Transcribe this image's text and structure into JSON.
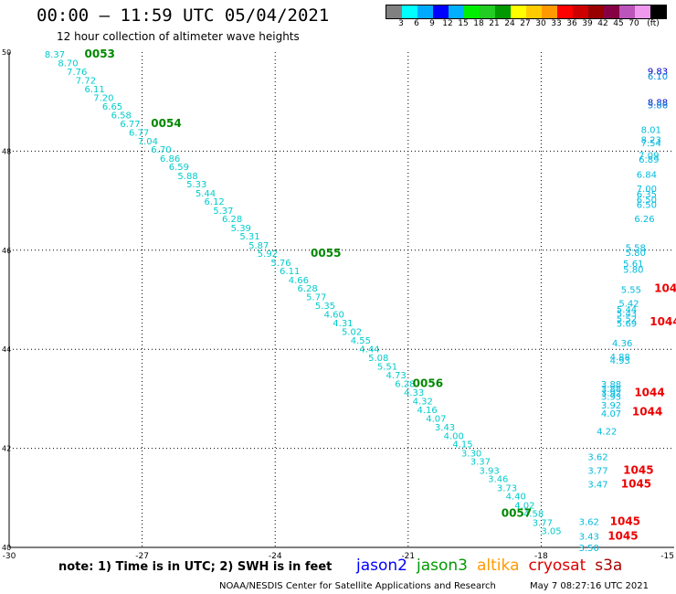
{
  "title": "00:00 – 11:59 UTC 05/04/2021",
  "subtitle": "12 hour collection of altimeter wave heights",
  "legend": {
    "colors": [
      "#808080",
      "#00ffff",
      "#00aaff",
      "#0000ff",
      "#00b0ff",
      "#00ee00",
      "#22cc22",
      "#009900",
      "#ffff00",
      "#ffcc00",
      "#ff9900",
      "#ff0000",
      "#cc0000",
      "#990000",
      "#880044",
      "#bb55bb",
      "#ee99ee",
      "#000000"
    ],
    "labels": [
      "3",
      "6",
      "9",
      "12",
      "15",
      "18",
      "21",
      "24",
      "27",
      "30",
      "33",
      "36",
      "39",
      "42",
      "45",
      "70",
      "(ft)"
    ]
  },
  "note": "note:  1) Time is in UTC;  2) SWH is in feet",
  "satellites": [
    {
      "name": "jason2",
      "color": "#0000ff"
    },
    {
      "name": "jason3",
      "color": "#009900"
    },
    {
      "name": "altika",
      "color": "#ff9900"
    },
    {
      "name": "cryosat",
      "color": "#dd0000"
    },
    {
      "name": "s3a",
      "color": "#aa0000"
    }
  ],
  "credit": "NOAA/NESDIS Center for Satellite Applications and Research",
  "timestamp": "May  7 08:27:16 UTC 2021",
  "chart_data": {
    "type": "scatter",
    "xlim": [
      -30,
      -15
    ],
    "ylim": [
      40,
      50
    ],
    "x_ticks": [
      -30,
      -27,
      -24,
      -21,
      -18,
      -15
    ],
    "y_ticks": [
      40,
      42,
      44,
      46,
      48,
      50
    ],
    "grid": true,
    "series": [
      {
        "name": "jason3",
        "color": "#00cccc",
        "points": [
          {
            "lon": -29.2,
            "lat": 49.96,
            "label": "8.37"
          },
          {
            "lon": -28.9,
            "lat": 49.79,
            "label": "8.70"
          },
          {
            "lon": -28.7,
            "lat": 49.61,
            "label": "7.76"
          },
          {
            "lon": -28.5,
            "lat": 49.44,
            "label": "7.72"
          },
          {
            "lon": -28.3,
            "lat": 49.26,
            "label": "6.11"
          },
          {
            "lon": -28.1,
            "lat": 49.09,
            "label": "7.20"
          },
          {
            "lon": -27.9,
            "lat": 48.91,
            "label": "6.65"
          },
          {
            "lon": -27.7,
            "lat": 48.74,
            "label": "6.58"
          },
          {
            "lon": -27.5,
            "lat": 48.56,
            "label": "6.77"
          },
          {
            "lon": -27.3,
            "lat": 48.39,
            "label": "6.77"
          },
          {
            "lon": -27.1,
            "lat": 48.21,
            "label": "7.04"
          },
          {
            "lon": -26.8,
            "lat": 48.04,
            "label": "6.70"
          },
          {
            "lon": -26.6,
            "lat": 47.86,
            "label": "6.86"
          },
          {
            "lon": -26.4,
            "lat": 47.69,
            "label": "6.59"
          },
          {
            "lon": -26.2,
            "lat": 47.51,
            "label": "5.88"
          },
          {
            "lon": -26.0,
            "lat": 47.34,
            "label": "5.33"
          },
          {
            "lon": -25.8,
            "lat": 47.16,
            "label": "5.44"
          },
          {
            "lon": -25.6,
            "lat": 46.99,
            "label": "6.12"
          },
          {
            "lon": -25.4,
            "lat": 46.81,
            "label": "5.37"
          },
          {
            "lon": -25.2,
            "lat": 46.64,
            "label": "6.28"
          },
          {
            "lon": -25.0,
            "lat": 46.46,
            "label": "5.39"
          },
          {
            "lon": -24.8,
            "lat": 46.29,
            "label": "5.31"
          },
          {
            "lon": -24.6,
            "lat": 46.11,
            "label": "5.87"
          },
          {
            "lon": -24.4,
            "lat": 45.94,
            "label": "5.92"
          },
          {
            "lon": -24.1,
            "lat": 45.76,
            "label": "5.76"
          },
          {
            "lon": -23.9,
            "lat": 45.59,
            "label": "6.11"
          },
          {
            "lon": -23.7,
            "lat": 45.41,
            "label": "4.66"
          },
          {
            "lon": -23.5,
            "lat": 45.24,
            "label": "6.28"
          },
          {
            "lon": -23.3,
            "lat": 45.06,
            "label": "5.77"
          },
          {
            "lon": -23.1,
            "lat": 44.89,
            "label": "5.35"
          },
          {
            "lon": -22.9,
            "lat": 44.71,
            "label": "4.60"
          },
          {
            "lon": -22.7,
            "lat": 44.54,
            "label": "4.31"
          },
          {
            "lon": -22.5,
            "lat": 44.36,
            "label": "5.02"
          },
          {
            "lon": -22.3,
            "lat": 44.19,
            "label": "4.55"
          },
          {
            "lon": -22.1,
            "lat": 44.01,
            "label": "4.44"
          },
          {
            "lon": -21.9,
            "lat": 43.84,
            "label": "5.08"
          },
          {
            "lon": -21.7,
            "lat": 43.66,
            "label": "5.51"
          },
          {
            "lon": -21.5,
            "lat": 43.49,
            "label": "4.73"
          },
          {
            "lon": -21.3,
            "lat": 43.31,
            "label": "6.28"
          },
          {
            "lon": -21.1,
            "lat": 43.14,
            "label": "4.33"
          },
          {
            "lon": -20.9,
            "lat": 42.96,
            "label": "4.32"
          },
          {
            "lon": -20.8,
            "lat": 42.79,
            "label": "4.16"
          },
          {
            "lon": -20.6,
            "lat": 42.61,
            "label": "4.07"
          },
          {
            "lon": -20.4,
            "lat": 42.44,
            "label": "3.43"
          },
          {
            "lon": -20.2,
            "lat": 42.26,
            "label": "4.00"
          },
          {
            "lon": -20.0,
            "lat": 42.09,
            "label": "4.15"
          },
          {
            "lon": -19.8,
            "lat": 41.91,
            "label": "3.30"
          },
          {
            "lon": -19.6,
            "lat": 41.74,
            "label": "3.37"
          },
          {
            "lon": -19.4,
            "lat": 41.56,
            "label": "3.93"
          },
          {
            "lon": -19.2,
            "lat": 41.39,
            "label": "3.46"
          },
          {
            "lon": -19.0,
            "lat": 41.21,
            "label": "3.73"
          },
          {
            "lon": -18.8,
            "lat": 41.04,
            "label": "4.40"
          },
          {
            "lon": -18.6,
            "lat": 40.86,
            "label": "4.02"
          },
          {
            "lon": -18.4,
            "lat": 40.69,
            "label": "4.58"
          },
          {
            "lon": -18.2,
            "lat": 40.51,
            "label": "3.77"
          },
          {
            "lon": -18.0,
            "lat": 40.34,
            "label": "3.05"
          }
        ]
      },
      {
        "name": "jason3 time",
        "color": "#008800",
        "points": [
          {
            "lon": -28.3,
            "lat": 49.96,
            "label": "0053"
          },
          {
            "lon": -26.8,
            "lat": 48.56,
            "label": "0054"
          },
          {
            "lon": -23.2,
            "lat": 45.94,
            "label": "0055"
          },
          {
            "lon": -20.9,
            "lat": 43.31,
            "label": "0056"
          },
          {
            "lon": -18.9,
            "lat": 40.69,
            "label": "0057"
          }
        ]
      },
      {
        "name": "east track",
        "color": "#00bbdd",
        "points": [
          {
            "lon": -15.6,
            "lat": 49.62,
            "label": "9.83",
            "color": "#0000cc"
          },
          {
            "lon": -15.6,
            "lat": 49.52,
            "label": "6.10",
            "color": "#0088dd"
          },
          {
            "lon": -15.6,
            "lat": 48.99,
            "label": "8.88",
            "color": "#0000cc"
          },
          {
            "lon": -15.6,
            "lat": 48.94,
            "label": "5.86",
            "color": "#0088dd"
          },
          {
            "lon": -15.75,
            "lat": 48.44,
            "label": "8.01"
          },
          {
            "lon": -15.75,
            "lat": 48.24,
            "label": "8.23"
          },
          {
            "lon": -15.75,
            "lat": 48.17,
            "label": "7.54"
          },
          {
            "lon": -15.8,
            "lat": 47.92,
            "label": "7.09"
          },
          {
            "lon": -15.8,
            "lat": 47.84,
            "label": "6.89"
          },
          {
            "lon": -15.85,
            "lat": 47.54,
            "label": "6.84"
          },
          {
            "lon": -15.85,
            "lat": 47.25,
            "label": "7.00"
          },
          {
            "lon": -15.85,
            "lat": 47.14,
            "label": "6.35"
          },
          {
            "lon": -15.85,
            "lat": 47.03,
            "label": "6.50"
          },
          {
            "lon": -15.85,
            "lat": 46.93,
            "label": "6.50"
          },
          {
            "lon": -15.9,
            "lat": 46.64,
            "label": "6.26"
          },
          {
            "lon": -16.1,
            "lat": 46.06,
            "label": "5.58"
          },
          {
            "lon": -16.1,
            "lat": 45.96,
            "label": "5.80"
          },
          {
            "lon": -16.15,
            "lat": 45.74,
            "label": "5.61"
          },
          {
            "lon": -16.15,
            "lat": 45.62,
            "label": "5.80"
          },
          {
            "lon": -16.2,
            "lat": 45.21,
            "label": "5.55"
          },
          {
            "lon": -16.25,
            "lat": 44.94,
            "label": "5.42"
          },
          {
            "lon": -16.3,
            "lat": 44.82,
            "label": "5.44"
          },
          {
            "lon": -16.3,
            "lat": 44.73,
            "label": "5.43"
          },
          {
            "lon": -16.3,
            "lat": 44.62,
            "label": "5.52"
          },
          {
            "lon": -16.3,
            "lat": 44.53,
            "label": "5.69"
          },
          {
            "lon": -16.4,
            "lat": 44.13,
            "label": "4.36"
          },
          {
            "lon": -16.45,
            "lat": 43.86,
            "label": "4.88"
          },
          {
            "lon": -16.45,
            "lat": 43.78,
            "label": "4.93"
          },
          {
            "lon": -16.65,
            "lat": 43.3,
            "label": "3.88"
          },
          {
            "lon": -16.65,
            "lat": 43.21,
            "label": "3.88"
          },
          {
            "lon": -16.65,
            "lat": 43.13,
            "label": "3.92"
          },
          {
            "lon": -16.65,
            "lat": 43.05,
            "label": "3.93"
          },
          {
            "lon": -16.65,
            "lat": 42.88,
            "label": "3.92"
          },
          {
            "lon": -16.65,
            "lat": 42.71,
            "label": "4.07"
          },
          {
            "lon": -16.75,
            "lat": 42.35,
            "label": "4.22"
          },
          {
            "lon": -16.95,
            "lat": 41.84,
            "label": "3.62"
          },
          {
            "lon": -16.95,
            "lat": 41.56,
            "label": "3.77"
          },
          {
            "lon": -16.95,
            "lat": 41.28,
            "label": "3.47"
          },
          {
            "lon": -17.15,
            "lat": 40.53,
            "label": "3.62"
          },
          {
            "lon": -17.15,
            "lat": 40.23,
            "label": "3.43"
          },
          {
            "lon": -17.15,
            "lat": 40.0,
            "label": "3.50"
          }
        ]
      },
      {
        "name": "cryosat time",
        "color": "#ee0000",
        "points": [
          {
            "lon": -15.45,
            "lat": 45.23,
            "label": "1044"
          },
          {
            "lon": -15.55,
            "lat": 44.56,
            "label": "1044"
          },
          {
            "lon": -15.9,
            "lat": 43.13,
            "label": "1044"
          },
          {
            "lon": -15.95,
            "lat": 42.74,
            "label": "1044"
          },
          {
            "lon": -16.15,
            "lat": 41.56,
            "label": "1045"
          },
          {
            "lon": -16.2,
            "lat": 41.28,
            "label": "1045"
          },
          {
            "lon": -16.45,
            "lat": 40.53,
            "label": "1045"
          },
          {
            "lon": -16.5,
            "lat": 40.23,
            "label": "1045"
          }
        ]
      }
    ]
  }
}
